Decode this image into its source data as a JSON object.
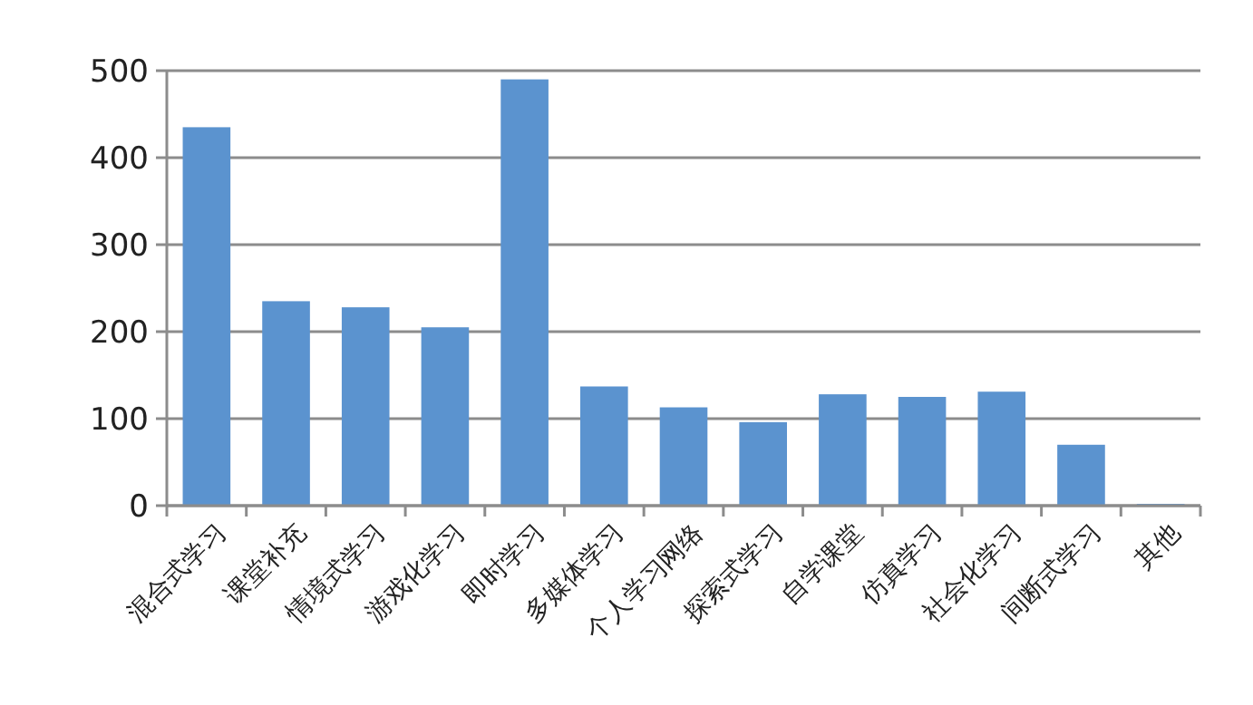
{
  "chart_data": {
    "type": "bar",
    "categories": [
      "混合式学习",
      "课堂补充",
      "情境式学习",
      "游戏化学习",
      "即时学习",
      "多媒体学习",
      "个人学习网络",
      "探索式学习",
      "自学课堂",
      "仿真学习",
      "社会化学习",
      "间断式学习",
      "其他"
    ],
    "values": [
      435,
      235,
      228,
      205,
      490,
      137,
      113,
      96,
      128,
      125,
      131,
      70,
      2
    ],
    "color": "#5b93cf",
    "ylim": [
      0,
      500
    ],
    "yticks": [
      0,
      100,
      200,
      300,
      400,
      500
    ],
    "grid": "y"
  }
}
